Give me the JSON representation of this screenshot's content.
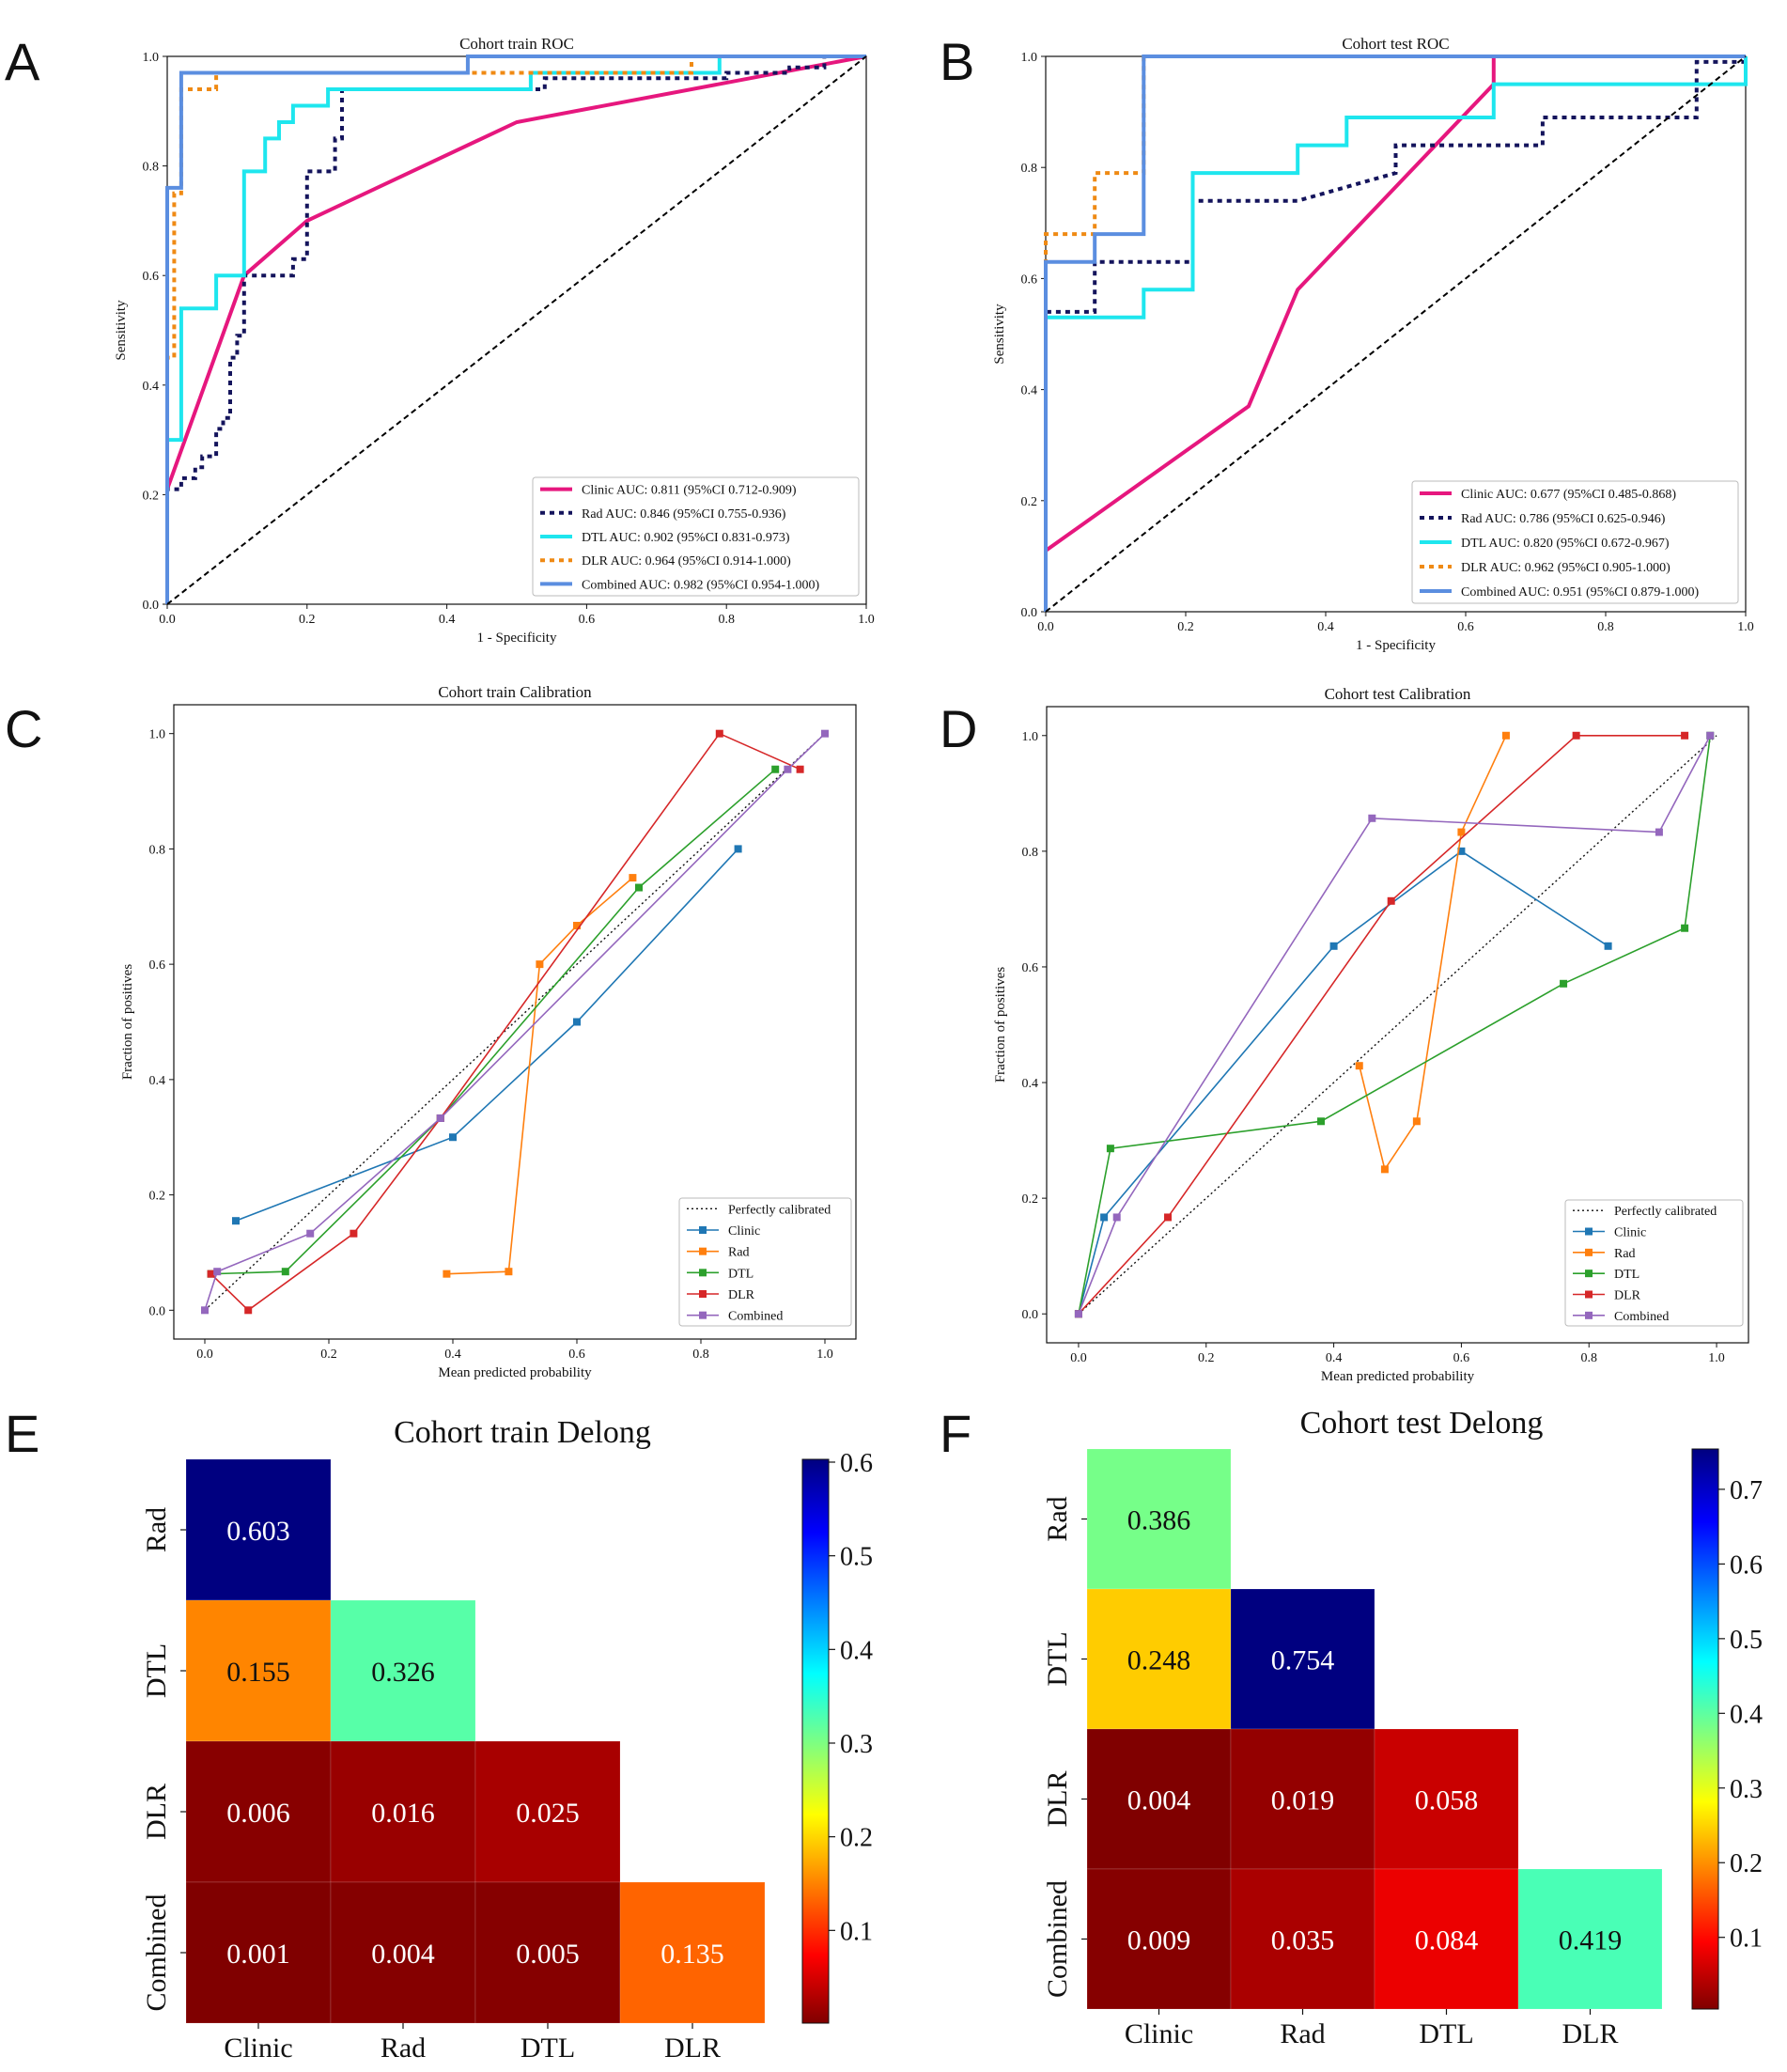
{
  "panels": [
    {
      "letter": "A"
    },
    {
      "letter": "B"
    },
    {
      "letter": "C"
    },
    {
      "letter": "D"
    },
    {
      "letter": "E"
    },
    {
      "letter": "F"
    }
  ],
  "chart_data": [
    {
      "id": "A",
      "type": "line",
      "title": "Cohort train ROC",
      "xlabel": "1 - Specificity",
      "ylabel": "Sensitivity",
      "xlim": [
        0,
        1
      ],
      "ylim": [
        0,
        1
      ],
      "xticks": [
        "0.0",
        "0.2",
        "0.4",
        "0.6",
        "0.8",
        "1.0"
      ],
      "yticks": [
        "0.0",
        "0.2",
        "0.4",
        "0.6",
        "0.8",
        "1.0"
      ],
      "legend_position": "lower-right",
      "series": [
        {
          "name": "Clinic AUC: 0.811 (95%CI 0.712-0.909)",
          "color": "#e6177e",
          "dash": "solid",
          "x": [
            0,
            0.11,
            0.2,
            0.5,
            1.0
          ],
          "y": [
            0.21,
            0.6,
            0.7,
            0.88,
            1.0
          ]
        },
        {
          "name": "Rad AUC: 0.846 (95%CI 0.755-0.936)",
          "color": "#14145c",
          "dash": "dot",
          "x": [
            0,
            0,
            0.02,
            0.02,
            0.04,
            0.04,
            0.05,
            0.05,
            0.07,
            0.07,
            0.08,
            0.08,
            0.09,
            0.09,
            0.1,
            0.1,
            0.11,
            0.11,
            0.18,
            0.18,
            0.2,
            0.2,
            0.24,
            0.24,
            0.25,
            0.25,
            0.54,
            0.54,
            0.8,
            0.8,
            0.89,
            0.89,
            0.94,
            0.94,
            1.0
          ],
          "y": [
            0,
            0.21,
            0.21,
            0.23,
            0.23,
            0.25,
            0.25,
            0.27,
            0.27,
            0.32,
            0.32,
            0.34,
            0.34,
            0.45,
            0.45,
            0.49,
            0.49,
            0.6,
            0.6,
            0.63,
            0.63,
            0.79,
            0.79,
            0.85,
            0.85,
            0.94,
            0.94,
            0.96,
            0.96,
            0.97,
            0.97,
            0.98,
            0.98,
            1.0,
            1.0
          ]
        },
        {
          "name": "DTL AUC: 0.902 (95%CI 0.831-0.973)",
          "color": "#1ee6ee",
          "dash": "solid",
          "x": [
            0,
            0,
            0.02,
            0.02,
            0.07,
            0.07,
            0.11,
            0.11,
            0.14,
            0.14,
            0.16,
            0.16,
            0.18,
            0.18,
            0.23,
            0.23,
            0.25,
            0.25,
            0.52,
            0.52,
            0.79,
            0.79,
            1.0
          ],
          "y": [
            0,
            0.3,
            0.3,
            0.54,
            0.54,
            0.6,
            0.6,
            0.79,
            0.79,
            0.85,
            0.85,
            0.88,
            0.88,
            0.91,
            0.91,
            0.94,
            0.94,
            0.94,
            0.94,
            0.97,
            0.97,
            1.0,
            1.0
          ]
        },
        {
          "name": "DLR AUC: 0.964 (95%CI 0.914-1.000)",
          "color": "#ef8a14",
          "dash": "dot",
          "x": [
            0,
            0,
            0.01,
            0.01,
            0.02,
            0.02,
            0.07,
            0.07,
            0.43,
            0.43,
            0.75,
            0.75,
            1.0
          ],
          "y": [
            0,
            0.45,
            0.45,
            0.75,
            0.75,
            0.94,
            0.94,
            0.97,
            0.97,
            0.97,
            0.97,
            1.0,
            1.0
          ]
        },
        {
          "name": "Combined AUC: 0.982 (95%CI 0.954-1.000)",
          "color": "#5b8ee0",
          "dash": "solid",
          "x": [
            0,
            0,
            0.02,
            0.02,
            0.43,
            0.43,
            1.0
          ],
          "y": [
            0,
            0.76,
            0.76,
            0.97,
            0.97,
            1.0,
            1.0
          ]
        },
        {
          "name": "",
          "color": "#000000",
          "dash": "dash",
          "x": [
            0,
            1
          ],
          "y": [
            0,
            1
          ]
        }
      ]
    },
    {
      "id": "B",
      "type": "line",
      "title": "Cohort test ROC",
      "xlabel": "1 - Specificity",
      "ylabel": "Sensitivity",
      "xlim": [
        0,
        1
      ],
      "ylim": [
        0,
        1
      ],
      "xticks": [
        "0.0",
        "0.2",
        "0.4",
        "0.6",
        "0.8",
        "1.0"
      ],
      "yticks": [
        "0.0",
        "0.2",
        "0.4",
        "0.6",
        "0.8",
        "1.0"
      ],
      "legend_position": "lower-right",
      "series": [
        {
          "name": "Clinic AUC: 0.677 (95%CI 0.485-0.868)",
          "color": "#e6177e",
          "dash": "solid",
          "x": [
            0,
            0.29,
            0.36,
            0.64,
            0.64,
            1.0
          ],
          "y": [
            0.11,
            0.37,
            0.58,
            0.95,
            1.0,
            1.0
          ]
        },
        {
          "name": "Rad AUC: 0.786 (95%CI 0.625-0.946)",
          "color": "#14145c",
          "dash": "dot",
          "x": [
            0,
            0,
            0.07,
            0.07,
            0.21,
            0.21,
            0.36,
            0.5,
            0.5,
            0.71,
            0.71,
            0.93,
            0.93,
            1.0
          ],
          "y": [
            0,
            0.54,
            0.54,
            0.63,
            0.63,
            0.74,
            0.74,
            0.79,
            0.84,
            0.84,
            0.89,
            0.89,
            0.99,
            0.99
          ]
        },
        {
          "name": "DTL AUC: 0.820 (95%CI 0.672-0.967)",
          "color": "#1ee6ee",
          "dash": "solid",
          "x": [
            0,
            0,
            0.14,
            0.14,
            0.21,
            0.21,
            0.36,
            0.36,
            0.43,
            0.43,
            0.64,
            0.64,
            1.0,
            1.0
          ],
          "y": [
            0,
            0.53,
            0.53,
            0.58,
            0.58,
            0.79,
            0.79,
            0.84,
            0.84,
            0.89,
            0.89,
            0.95,
            0.95,
            1.0
          ]
        },
        {
          "name": "DLR AUC: 0.962 (95%CI 0.905-1.000)",
          "color": "#ef8a14",
          "dash": "dot",
          "x": [
            0,
            0,
            0.07,
            0.07,
            0.14,
            0.14,
            1.0
          ],
          "y": [
            0,
            0.68,
            0.68,
            0.79,
            0.79,
            1.0,
            1.0
          ]
        },
        {
          "name": "Combined AUC: 0.951 (95%CI 0.879-1.000)",
          "color": "#5b8ee0",
          "dash": "solid",
          "x": [
            0,
            0,
            0.07,
            0.07,
            0.14,
            0.14,
            1.0
          ],
          "y": [
            0,
            0.63,
            0.63,
            0.68,
            0.68,
            1.0,
            1.0
          ]
        },
        {
          "name": "",
          "color": "#000000",
          "dash": "dash",
          "x": [
            0,
            1
          ],
          "y": [
            0,
            1
          ]
        }
      ]
    },
    {
      "id": "C",
      "type": "line",
      "title": "Cohort train Calibration",
      "xlabel": "Mean predicted probability",
      "ylabel": "Fraction of positives",
      "xlim": [
        -0.05,
        1.05
      ],
      "ylim": [
        -0.05,
        1.05
      ],
      "xticks": [
        "0.0",
        "0.2",
        "0.4",
        "0.6",
        "0.8",
        "1.0"
      ],
      "yticks": [
        "0.0",
        "0.2",
        "0.4",
        "0.6",
        "0.8",
        "1.0"
      ],
      "legend_position": "lower-right",
      "series": [
        {
          "name": "Perfectly calibrated",
          "color": "#111111",
          "dash": "dot",
          "marker": false,
          "x": [
            0,
            1
          ],
          "y": [
            0,
            1
          ]
        },
        {
          "name": "Clinic",
          "color": "#1f77b4",
          "dash": "solid",
          "marker": true,
          "x": [
            0.05,
            0.4,
            0.6,
            0.86
          ],
          "y": [
            0.155,
            0.3,
            0.5,
            0.8
          ]
        },
        {
          "name": "Rad",
          "color": "#ff7f0e",
          "dash": "solid",
          "marker": true,
          "x": [
            0.39,
            0.49,
            0.54,
            0.6,
            0.69
          ],
          "y": [
            0.063,
            0.067,
            0.6,
            0.667,
            0.75
          ]
        },
        {
          "name": "DTL",
          "color": "#2ca02c",
          "dash": "solid",
          "marker": true,
          "x": [
            0.01,
            0.13,
            0.38,
            0.7,
            0.92
          ],
          "y": [
            0.063,
            0.067,
            0.333,
            0.733,
            0.938
          ]
        },
        {
          "name": "DLR",
          "color": "#d62728",
          "dash": "solid",
          "marker": true,
          "x": [
            0.01,
            0.07,
            0.24,
            0.38,
            0.83,
            0.96
          ],
          "y": [
            0.063,
            0.0,
            0.133,
            0.333,
            1.0,
            0.938
          ]
        },
        {
          "name": "Combined",
          "color": "#9467bd",
          "dash": "solid",
          "marker": true,
          "x": [
            0.0,
            0.02,
            0.17,
            0.38,
            0.94,
            1.0
          ],
          "y": [
            0.0,
            0.067,
            0.133,
            0.333,
            0.938,
            1.0
          ]
        }
      ]
    },
    {
      "id": "D",
      "type": "line",
      "title": "Cohort test Calibration",
      "xlabel": "Mean predicted probability",
      "ylabel": "Fraction of positives",
      "xlim": [
        -0.05,
        1.05
      ],
      "ylim": [
        -0.05,
        1.05
      ],
      "xticks": [
        "0.0",
        "0.2",
        "0.4",
        "0.6",
        "0.8",
        "1.0"
      ],
      "yticks": [
        "0.0",
        "0.2",
        "0.4",
        "0.6",
        "0.8",
        "1.0"
      ],
      "legend_position": "lower-right",
      "series": [
        {
          "name": "Perfectly calibrated",
          "color": "#111111",
          "dash": "dot",
          "marker": false,
          "x": [
            0,
            1
          ],
          "y": [
            0,
            1
          ]
        },
        {
          "name": "Clinic",
          "color": "#1f77b4",
          "dash": "solid",
          "marker": true,
          "x": [
            0.0,
            0.04,
            0.4,
            0.6,
            0.83
          ],
          "y": [
            0.0,
            0.167,
            0.636,
            0.8,
            0.636
          ]
        },
        {
          "name": "Rad",
          "color": "#ff7f0e",
          "dash": "solid",
          "marker": true,
          "x": [
            0.44,
            0.48,
            0.53,
            0.6,
            0.67
          ],
          "y": [
            0.429,
            0.25,
            0.333,
            0.833,
            1.0
          ]
        },
        {
          "name": "DTL",
          "color": "#2ca02c",
          "dash": "solid",
          "marker": true,
          "x": [
            0.0,
            0.05,
            0.38,
            0.76,
            0.95,
            0.99
          ],
          "y": [
            0.0,
            0.286,
            0.333,
            0.571,
            0.667,
            1.0
          ]
        },
        {
          "name": "DLR",
          "color": "#d62728",
          "dash": "solid",
          "marker": true,
          "x": [
            0.0,
            0.14,
            0.49,
            0.78,
            0.95
          ],
          "y": [
            0.0,
            0.167,
            0.714,
            1.0,
            1.0
          ]
        },
        {
          "name": "Combined",
          "color": "#9467bd",
          "dash": "solid",
          "marker": true,
          "x": [
            0.0,
            0.06,
            0.46,
            0.91,
            0.99
          ],
          "y": [
            0.0,
            0.167,
            0.857,
            0.833,
            1.0
          ]
        }
      ]
    },
    {
      "id": "E",
      "type": "heatmap",
      "title": "Cohort train Delong",
      "col_labels": [
        "Clinic",
        "Rad",
        "DTL",
        "DLR"
      ],
      "row_labels": [
        "Rad",
        "DTL",
        "DLR",
        "Combined"
      ],
      "cells": [
        [
          "0.603",
          null,
          null,
          null
        ],
        [
          "0.155",
          "0.326",
          null,
          null
        ],
        [
          "0.006",
          "0.016",
          "0.025",
          null
        ],
        [
          "0.001",
          "0.004",
          "0.005",
          "0.135"
        ]
      ],
      "colorbar": {
        "min": 0.001,
        "max": 0.603,
        "ticks": [
          "0.6",
          "0.5",
          "0.4",
          "0.3",
          "0.2",
          "0.1"
        ],
        "tick_values": [
          0.6,
          0.5,
          0.4,
          0.3,
          0.2,
          0.1
        ],
        "colormap": "jet_r"
      }
    },
    {
      "id": "F",
      "type": "heatmap",
      "title": "Cohort test Delong",
      "col_labels": [
        "Clinic",
        "Rad",
        "DTL",
        "DLR"
      ],
      "row_labels": [
        "Rad",
        "DTL",
        "DLR",
        "Combined"
      ],
      "cells": [
        [
          "0.386",
          null,
          null,
          null
        ],
        [
          "0.248",
          "0.754",
          null,
          null
        ],
        [
          "0.004",
          "0.019",
          "0.058",
          null
        ],
        [
          "0.009",
          "0.035",
          "0.084",
          "0.419"
        ]
      ],
      "colorbar": {
        "min": 0.004,
        "max": 0.754,
        "ticks": [
          "0.7",
          "0.6",
          "0.5",
          "0.4",
          "0.3",
          "0.2",
          "0.1"
        ],
        "tick_values": [
          0.7,
          0.6,
          0.5,
          0.4,
          0.3,
          0.2,
          0.1
        ],
        "colormap": "jet_r"
      }
    }
  ]
}
